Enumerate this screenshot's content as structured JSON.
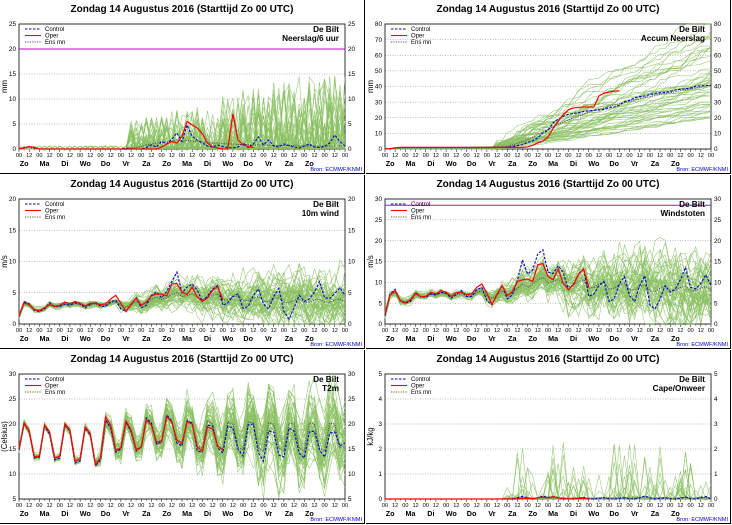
{
  "page": {
    "background": "#ffffff",
    "source_label": "Bron: ECMWF/KNMI",
    "colors": {
      "control": "#0000cc",
      "oper": "#ff0000",
      "ensmn": "#555555",
      "members": "#88c060",
      "threshold": "#cc00cc",
      "grid": "#000000"
    },
    "legend": [
      "Control",
      "Oper",
      "Ens mn"
    ]
  },
  "chart_data": [
    {
      "id": "precip6h",
      "type": "line",
      "title": "Zondag 14 Augustus 2016    (Starttijd Zo 00 UTC)",
      "station": "De Bilt",
      "variable": "Neerslag/6 uur",
      "ylabel": "mm",
      "ylim": [
        0,
        25
      ],
      "yticks": [
        0,
        5,
        10,
        15,
        20,
        25
      ],
      "threshold": 20,
      "x_step_hours": 6,
      "control": [
        0,
        0.3,
        0.5,
        0.2,
        0,
        0,
        0,
        0,
        0,
        0,
        0,
        0,
        0,
        0,
        0,
        0,
        0,
        0,
        0,
        0,
        0,
        0.2,
        0,
        0,
        0,
        0.3,
        0.8,
        0.4,
        1.5,
        1.0,
        2.0,
        3.2,
        1.5,
        4.8,
        2.5,
        1.8,
        1.2,
        0.6,
        0.4,
        0.8,
        0.5,
        0.3,
        0.2,
        0.4,
        1.2,
        0.3,
        1.0,
        2.4,
        0.8,
        1.8,
        0.6,
        0.4,
        1.0,
        0.7,
        0.4,
        0.2,
        0.6,
        1.0,
        0.4,
        0.3,
        0.5,
        1.2,
        2.8,
        1.5,
        0.6
      ],
      "oper": [
        0,
        0.2,
        0.5,
        0.3,
        0,
        0,
        0,
        0,
        0,
        0,
        0,
        0,
        0,
        0,
        0,
        0,
        0,
        0,
        0,
        0,
        0,
        0,
        0,
        0,
        0,
        0,
        0,
        0,
        0.4,
        1.0,
        1.5,
        1.2,
        2.5,
        5.5,
        4.8,
        4.2,
        3.0,
        1.2,
        0.4,
        0.2,
        0,
        0,
        7.0,
        1.8,
        0.8,
        0.5,
        0.3
      ],
      "ensmn": [
        0,
        0.2,
        0.3,
        0.1,
        0,
        0,
        0,
        0,
        0,
        0,
        0,
        0,
        0,
        0,
        0,
        0,
        0,
        0,
        0,
        0,
        0,
        0.1,
        0.2,
        0.3,
        0.5,
        0.8,
        1.0,
        1.2,
        1.5,
        1.4,
        1.6,
        1.8,
        1.5,
        1.7,
        1.6,
        1.5,
        1.4,
        1.3,
        1.2,
        1.2,
        1.1,
        1.0,
        1.0,
        0.9,
        0.9,
        0.9,
        0.8,
        0.8,
        0.8,
        0.8,
        0.7,
        0.7,
        0.7,
        0.7,
        0.7,
        0.6,
        0.6,
        0.6,
        0.6,
        0.6,
        0.6,
        0.6,
        0.6,
        0.6,
        0.6
      ],
      "members": {
        "count": 50,
        "shape": "precip",
        "base": 0,
        "spread": 3.2,
        "start": 22,
        "peak": 14
      }
    },
    {
      "id": "accum",
      "type": "line",
      "title": "Zondag 14 Augustus 2016    (Starttijd Zo 00 UTC)",
      "station": "De Bilt",
      "variable": "Accum Neerslag",
      "ylabel": "mm",
      "ylim": [
        0,
        80
      ],
      "yticks": [
        0,
        10,
        20,
        30,
        40,
        50,
        60,
        70,
        80
      ],
      "threshold": null,
      "x_step_hours": 6,
      "control": [
        0,
        0.3,
        0.8,
        1,
        1,
        1,
        1,
        1,
        1,
        1,
        1,
        1,
        1,
        1,
        1,
        1,
        1,
        1,
        1,
        1,
        1,
        1.2,
        1.2,
        1.2,
        1.2,
        1.5,
        2.3,
        2.7,
        4.2,
        5.2,
        7.2,
        10.4,
        11.9,
        16.7,
        19.2,
        21,
        22.2,
        22.8,
        23.2,
        24,
        24.5,
        24.8,
        25,
        25.4,
        26.6,
        26.9,
        27.9,
        30.3,
        31.1,
        32.9,
        33.5,
        33.9,
        34.9,
        35.6,
        36,
        36.2,
        36.8,
        37.8,
        38.2,
        38.5,
        39,
        40.2,
        40.5,
        40.6,
        40.8
      ],
      "oper": [
        0,
        0.2,
        0.7,
        1,
        1,
        1,
        1,
        1,
        1,
        1,
        1,
        1,
        1,
        1,
        1,
        1,
        1,
        1,
        1,
        1,
        1,
        1,
        1,
        1,
        1,
        1,
        1,
        1,
        1.4,
        2.4,
        3.9,
        5.1,
        7.6,
        13.1,
        17.9,
        22.1,
        25.1,
        26.3,
        26.7,
        26.9,
        26.9,
        26.9,
        33.9,
        35.7,
        36.5,
        37,
        37.3
      ],
      "ensmn": [
        0,
        0.2,
        0.5,
        0.6,
        0.6,
        0.6,
        0.6,
        0.6,
        0.6,
        0.6,
        0.6,
        0.6,
        0.6,
        0.6,
        0.6,
        0.6,
        0.6,
        0.6,
        0.6,
        0.6,
        0.6,
        0.7,
        0.9,
        1.2,
        1.7,
        2.5,
        3.5,
        4.7,
        6.2,
        7.6,
        9.2,
        11,
        12.5,
        14.2,
        15.8,
        17.3,
        18.7,
        20,
        21.2,
        22.4,
        23.5,
        24.5,
        25.5,
        26.4,
        27.3,
        28.2,
        29,
        29.8,
        30.6,
        31.4,
        32.1,
        32.8,
        33.5,
        34.2,
        34.9,
        35.5,
        36.1,
        36.7,
        37.3,
        37.9,
        38.5,
        39.1,
        39.7,
        40.3,
        40.9
      ],
      "members": {
        "count": 50,
        "shape": "accum",
        "base": 0,
        "spread": 26,
        "start": 22,
        "peak": 55
      }
    },
    {
      "id": "wind10m",
      "type": "line",
      "title": "Zondag 14 Augustus 2016    (Starttijd Zo 00 UTC)",
      "station": "De Bilt",
      "variable": "10m wind",
      "ylabel": "m/s",
      "ylim": [
        0,
        20
      ],
      "yticks": [
        0,
        5,
        10,
        15,
        20
      ],
      "threshold": null,
      "x_step_hours": 6,
      "control": [
        1.2,
        3.6,
        3.2,
        2.2,
        2,
        2.4,
        3.4,
        2.8,
        2.8,
        3.2,
        3,
        3.4,
        3.2,
        2.6,
        3.1,
        3.5,
        2.8,
        2.8,
        3.6,
        3.8,
        2.4,
        2,
        3.1,
        4.2,
        2.6,
        3,
        4.6,
        5.1,
        4.2,
        5.2,
        6.8,
        8.3,
        5,
        5.9,
        6.4,
        5.4,
        3.6,
        4.5,
        5.6,
        6.2,
        3,
        3.4,
        4.4,
        4.8,
        2.5,
        2.8,
        4.6,
        5.6,
        3.2,
        2.4,
        4.4,
        5.7,
        2,
        0.8,
        2.6,
        4.6,
        3.6,
        4,
        5.1,
        6.8,
        4.2,
        4.1,
        4.9,
        5.8,
        4.6
      ],
      "oper": [
        1.3,
        3.4,
        3.1,
        2.3,
        2.1,
        2.6,
        3.1,
        2.8,
        3,
        3.5,
        3.2,
        3.6,
        3.3,
        2.9,
        3.3,
        3.3,
        3.1,
        3.2,
        4,
        4.6,
        3.3,
        2,
        3.2,
        4.1,
        3,
        3.5,
        4.5,
        4.8,
        4.8,
        4.5,
        6.4,
        6.5,
        5.1,
        4.7,
        5.9,
        4.3,
        3.6,
        4.2,
        5.4,
        6,
        3.9
      ],
      "ensmn": [
        1.2,
        3.3,
        3,
        2.3,
        2.2,
        2.5,
        3.1,
        2.9,
        2.9,
        3.2,
        3,
        3.3,
        3.1,
        2.9,
        3.1,
        3.2,
        3,
        3,
        3.4,
        3.6,
        3,
        2.7,
        3.1,
        3.6,
        3.1,
        3.3,
        3.9,
        4.3,
        3.9,
        4.2,
        4.7,
        5,
        4.4,
        4.6,
        4.8,
        4.4,
        3.9,
        4.2,
        4.6,
        4.8,
        3.8,
        3.9,
        4.3,
        4.5,
        3.7,
        3.8,
        4.2,
        4.4,
        3.6,
        3.6,
        4,
        4.2,
        3.5,
        3.4,
        3.8,
        4,
        3.5,
        3.5,
        3.9,
        4,
        3.5,
        3.5,
        3.8,
        4,
        3.6
      ],
      "members": {
        "count": 50,
        "shape": "wind",
        "base": 0,
        "spread": 2.5,
        "start": 20,
        "peak": 12
      }
    },
    {
      "id": "gusts",
      "type": "line",
      "title": "Zondag 14 Augustus 2016    (Starttijd Zo 00 UTC)",
      "station": "De Bilt",
      "variable": "Windstoten",
      "ylabel": "m/s",
      "ylim": [
        0,
        30
      ],
      "yticks": [
        0,
        5,
        10,
        15,
        20,
        25,
        30
      ],
      "threshold": 28.5,
      "x_step_hours": 6,
      "control": [
        2,
        7.2,
        8.3,
        5.5,
        5,
        5.4,
        7.6,
        6.5,
        6.4,
        7.2,
        7,
        7.6,
        7.4,
        6.2,
        7.1,
        8,
        6.6,
        6.6,
        8.2,
        8.8,
        5.6,
        4.6,
        7,
        9.2,
        6,
        7,
        10.4,
        15.4,
        12,
        13,
        16.8,
        17.8,
        12.4,
        12.1,
        14,
        12.4,
        8.2,
        9.6,
        12,
        13.2,
        6.6,
        7.2,
        9.2,
        10.2,
        5.4,
        6,
        9.6,
        11.4,
        6.8,
        5.4,
        9.2,
        11.6,
        4.6,
        3.6,
        6,
        9.2,
        7.6,
        8.4,
        10.6,
        13.6,
        8.8,
        8.4,
        9.8,
        11.8,
        9.2
      ],
      "oper": [
        2.4,
        7,
        8,
        5.6,
        5.1,
        5.8,
        7.4,
        6.6,
        6.6,
        7.6,
        7.2,
        8,
        7.6,
        6.6,
        7.6,
        7.6,
        7.1,
        7.2,
        8.8,
        9.6,
        7.4,
        4.6,
        7.2,
        9.2,
        6.8,
        7.8,
        10.2,
        10.6,
        10.8,
        10.2,
        14.2,
        14.5,
        11.4,
        10.6,
        13.2,
        9.7,
        8.2,
        9.4,
        12,
        13.2,
        8.8
      ],
      "ensmn": [
        2.2,
        7,
        7.6,
        5.6,
        5.3,
        5.7,
        7.1,
        6.6,
        6.6,
        7.2,
        6.9,
        7.5,
        7.2,
        6.6,
        7,
        7.3,
        6.8,
        6.8,
        7.6,
        8,
        6.8,
        6.2,
        7,
        8,
        7,
        7.4,
        8.6,
        9.6,
        8.8,
        9.4,
        10.6,
        11.2,
        9.8,
        10.2,
        10.6,
        9.8,
        8.8,
        9.4,
        10.2,
        10.6,
        8.6,
        8.8,
        9.6,
        10,
        8.4,
        8.6,
        9.4,
        9.8,
        8.2,
        8.2,
        9,
        9.4,
        8,
        7.8,
        8.6,
        9,
        8,
        8,
        8.8,
        9,
        8,
        8,
        8.6,
        9,
        8.2
      ],
      "members": {
        "count": 50,
        "shape": "wind",
        "base": 0,
        "spread": 4.8,
        "start": 20,
        "peak": 12
      }
    },
    {
      "id": "t2m",
      "type": "line",
      "title": "Zondag 14 Augustus 2016    (Starttijd Zo 00 UTC)",
      "station": "De Bilt",
      "variable": "T2m",
      "ylabel": "(Celsius)",
      "ylim": [
        5,
        30
      ],
      "yticks": [
        5,
        10,
        15,
        20,
        25,
        30
      ],
      "threshold": null,
      "x_step_hours": 6,
      "control": [
        14.8,
        20.2,
        18.4,
        13.2,
        13.4,
        19.6,
        18,
        12.8,
        13.2,
        19.8,
        18.6,
        12.2,
        12.6,
        19.2,
        17.8,
        11.6,
        12.8,
        20.8,
        19.2,
        14.4,
        15,
        20.4,
        18.4,
        14.6,
        15.4,
        21.2,
        20.2,
        16,
        16.4,
        21.8,
        20.6,
        16.2,
        15.6,
        20.6,
        20.2,
        14.6,
        14.4,
        19.8,
        19.6,
        15.2,
        14.2,
        19.6,
        19.2,
        15,
        13.6,
        19.8,
        20,
        14.2,
        12.6,
        18.6,
        18.4,
        13.8,
        13.4,
        19.2,
        18.6,
        14.2,
        13.2,
        18.4,
        18.6,
        14.8,
        13.4,
        18.2,
        18.4,
        15.6,
        16.2
      ],
      "oper": [
        15,
        20.2,
        18.6,
        13.4,
        13.6,
        19.8,
        18.4,
        13.2,
        13.6,
        20,
        18.8,
        12.6,
        13,
        19.4,
        18,
        11.8,
        13.2,
        21.4,
        19.8,
        14.8,
        15.2,
        20.6,
        18.8,
        14.8,
        15.4,
        20.8,
        19.8,
        16.4,
        16.6,
        21.4,
        20.4,
        16.8,
        16.2,
        20.4,
        20,
        15.4,
        14.6,
        19.4,
        19,
        15.6,
        14.8
      ],
      "ensmn": [
        14.9,
        20.1,
        18.5,
        13.4,
        13.5,
        19.6,
        18.2,
        13.1,
        13.4,
        19.8,
        18.6,
        12.6,
        12.9,
        19.3,
        18,
        12.2,
        13.2,
        20.6,
        19.2,
        14.6,
        15,
        20.3,
        18.8,
        15,
        15.4,
        20.8,
        19.8,
        16,
        16.2,
        21.4,
        20.4,
        16.4,
        16,
        20.8,
        20.2,
        15.6,
        15.2,
        20.6,
        20,
        15.6,
        15,
        20.4,
        20,
        15.4,
        14.8,
        20.4,
        20.2,
        15.2,
        14.6,
        20.2,
        20,
        15.2,
        14.6,
        20.2,
        20,
        15.2,
        14.6,
        20.2,
        20,
        15.2,
        14.6,
        20.2,
        20,
        15.2,
        15.6
      ],
      "members": {
        "count": 50,
        "shape": "temp",
        "base": 5,
        "spread": 3.8,
        "start": 16,
        "peak": 10
      }
    },
    {
      "id": "cape",
      "type": "line",
      "title": "Zondag 14 Augustus 2016    (Starttijd Zo 00 UTC)",
      "station": "De Bilt",
      "variable": "Cape/Onweer",
      "ylabel": "kJ/kg",
      "ylim": [
        0,
        5
      ],
      "yticks": [
        0,
        1,
        2,
        3,
        4,
        5
      ],
      "threshold": null,
      "x_step_hours": 6,
      "control": [
        0,
        0,
        0,
        0,
        0,
        0,
        0,
        0,
        0,
        0,
        0,
        0,
        0,
        0,
        0,
        0,
        0,
        0,
        0,
        0,
        0,
        0,
        0,
        0,
        0,
        0,
        0.05,
        0.1,
        0.05,
        0,
        0.05,
        0.12,
        0.06,
        0.1,
        0.05,
        0,
        0,
        0,
        0.04,
        0.06,
        0,
        0,
        0.03,
        0.05,
        0,
        0,
        0.02,
        0.05,
        0,
        0,
        0.05,
        0.12,
        0.05,
        0,
        0.03,
        0.05,
        0,
        0,
        0.03,
        0.08,
        0,
        0,
        0.06,
        0.1,
        0
      ],
      "oper": [
        0,
        0,
        0,
        0,
        0,
        0,
        0,
        0,
        0,
        0,
        0,
        0,
        0,
        0,
        0,
        0,
        0,
        0,
        0,
        0,
        0,
        0,
        0,
        0,
        0,
        0,
        0,
        0.02,
        0.03,
        0.02,
        0.05,
        0.08,
        0.04,
        0.1,
        0.05,
        0.02,
        0,
        0,
        0.02,
        0.03,
        0
      ],
      "ensmn": [
        0,
        0,
        0,
        0,
        0,
        0,
        0,
        0,
        0,
        0,
        0,
        0,
        0,
        0,
        0,
        0,
        0,
        0,
        0,
        0,
        0,
        0,
        0,
        0.01,
        0.02,
        0.02,
        0.03,
        0.04,
        0.03,
        0.03,
        0.04,
        0.05,
        0.04,
        0.04,
        0.05,
        0.04,
        0.03,
        0.04,
        0.05,
        0.05,
        0.03,
        0.03,
        0.05,
        0.06,
        0.04,
        0.04,
        0.05,
        0.06,
        0.04,
        0.04,
        0.06,
        0.08,
        0.05,
        0.04,
        0.05,
        0.06,
        0.04,
        0.04,
        0.05,
        0.06,
        0.04,
        0.04,
        0.05,
        0.06,
        0.04
      ],
      "members": {
        "count": 50,
        "shape": "cape",
        "base": 0,
        "spread": 0.35,
        "start": 24,
        "peak": 2.3
      }
    }
  ],
  "x_axis": {
    "hour_labels": [
      "00",
      "12"
    ],
    "days": [
      "Zo",
      "Ma",
      "Di",
      "Wo",
      "Do",
      "Vr",
      "Za",
      "Zo",
      "Ma",
      "Di",
      "Wo",
      "Do",
      "Vr",
      "Za",
      "Zo"
    ],
    "points": 65
  }
}
